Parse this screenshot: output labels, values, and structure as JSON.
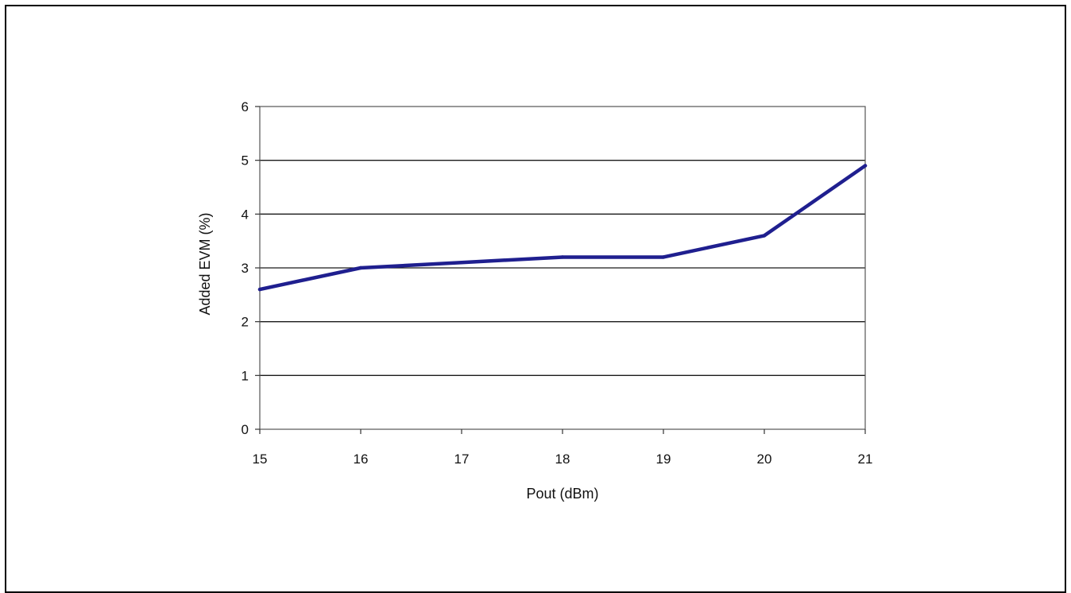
{
  "chart_data": {
    "type": "line",
    "title": "",
    "xlabel": "Pout (dBm)",
    "ylabel": "Added EVM (%)",
    "xlim": [
      15,
      21
    ],
    "ylim": [
      0,
      6
    ],
    "x_ticks": [
      "15",
      "16",
      "17",
      "18",
      "19",
      "20",
      "21"
    ],
    "y_ticks": [
      "0",
      "1",
      "2",
      "3",
      "4",
      "5",
      "6"
    ],
    "grid": "horizontal",
    "legend": "none",
    "series": [
      {
        "color": "#1f1f8f",
        "x": [
          15,
          16,
          17,
          18,
          19,
          20,
          21
        ],
        "y": [
          2.6,
          3.0,
          3.1,
          3.2,
          3.2,
          3.6,
          4.9
        ]
      }
    ]
  }
}
